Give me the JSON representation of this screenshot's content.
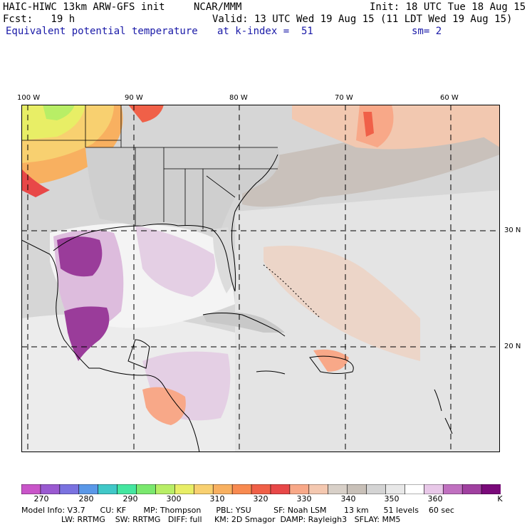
{
  "header": {
    "model": "HAIC-HIWC 13km ARW-GFS init",
    "org": "NCAR/MMM",
    "init": "Init: 18 UTC Tue 18 Aug 15",
    "fcst": "Fcst:   19 h",
    "valid": "Valid: 13 UTC Wed 19 Aug 15 (11 LDT Wed 19 Aug 15)",
    "field": "Equivalent potential temperature",
    "kindex": "at k-index =  51",
    "sm": "sm= 2"
  },
  "map": {
    "lon_labels": [
      "100 W",
      "90 W",
      "80 W",
      "70 W",
      "60 W"
    ],
    "lat_labels": [
      "30 N",
      "20 N"
    ]
  },
  "colorbar": {
    "labels": [
      "270",
      "280",
      "290",
      "300",
      "310",
      "320",
      "330",
      "340",
      "350",
      "360"
    ],
    "unit": "K",
    "colors": [
      "#c955c9",
      "#9a5ad1",
      "#7a72e0",
      "#5a98e8",
      "#40c8c8",
      "#44e6a0",
      "#7ae86e",
      "#b8ee66",
      "#e8ee66",
      "#f8d070",
      "#f8b060",
      "#f88a50",
      "#f06048",
      "#e84848",
      "#f8a888",
      "#f4c8b0",
      "#d8d0c8",
      "#c8c0b8",
      "#d4d4d4",
      "#e8e8e8",
      "#ffffff",
      "#e8c8e8",
      "#c070c0",
      "#a040a0",
      "#7a0a7a"
    ]
  },
  "footer": {
    "line1": "Model Info: V3.7      CU: KF       MP: Thompson      PBL: YSU         SF: Noah LSM       13 km      51 levels    60 sec",
    "line2": "                LW: RRTMG    SW: RRTMG   DIFF: full     KM: 2D Smagor  DAMP: Rayleigh3   SFLAY: MM5"
  }
}
